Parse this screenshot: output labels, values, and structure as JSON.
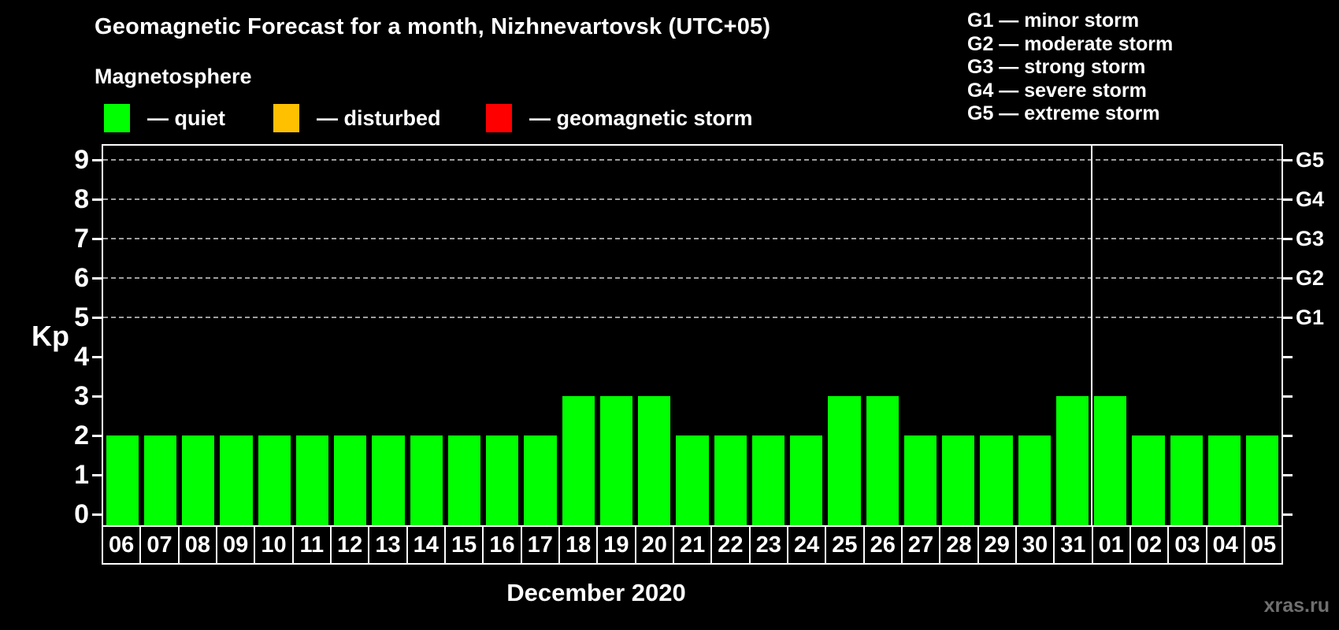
{
  "title": "Geomagnetic Forecast for a month, Nizhnevartovsk (UTC+05)",
  "subtitle": "Magnetosphere",
  "legend": {
    "items": [
      {
        "name": "quiet",
        "label": "— quiet",
        "color": "#00ff00"
      },
      {
        "name": "disturbed",
        "label": "— disturbed",
        "color": "#ffc000"
      },
      {
        "name": "geomagnetic-storm",
        "label": "— geomagnetic storm",
        "color": "#ff0000"
      }
    ]
  },
  "g_scale_legend": [
    "G1 — minor storm",
    "G2 — moderate storm",
    "G3 — strong storm",
    "G4 — severe storm",
    "G5 — extreme storm"
  ],
  "ylabel": "Kp",
  "xlabel": "December 2020",
  "watermark": "xras.ru",
  "chart_data": {
    "type": "bar",
    "title": "Geomagnetic Forecast for a month, Nizhnevartovsk (UTC+05)",
    "xlabel": "December 2020",
    "ylabel": "Kp",
    "categories": [
      "06",
      "07",
      "08",
      "09",
      "10",
      "11",
      "12",
      "13",
      "14",
      "15",
      "16",
      "17",
      "18",
      "19",
      "20",
      "21",
      "22",
      "23",
      "24",
      "25",
      "26",
      "27",
      "28",
      "29",
      "30",
      "31",
      "01",
      "02",
      "03",
      "04",
      "05"
    ],
    "values": [
      2,
      2,
      2,
      2,
      2,
      2,
      2,
      2,
      2,
      2,
      2,
      2,
      3,
      3,
      3,
      2,
      2,
      2,
      2,
      3,
      3,
      2,
      2,
      2,
      2,
      3,
      3,
      2,
      2,
      2,
      2
    ],
    "ylim": [
      0,
      9
    ],
    "yticks": [
      0,
      1,
      2,
      3,
      4,
      5,
      6,
      7,
      8,
      9
    ],
    "gridlines_at": [
      5,
      6,
      7,
      8,
      9
    ],
    "grid": "dashed-horizontal-at-G-levels-only",
    "right_axis_labels": [
      {
        "value": 5,
        "label": "G1"
      },
      {
        "value": 6,
        "label": "G2"
      },
      {
        "value": 7,
        "label": "G3"
      },
      {
        "value": 8,
        "label": "G4"
      },
      {
        "value": 9,
        "label": "G5"
      }
    ],
    "month_divider_after_index": 25,
    "color_rules": {
      "quiet_max_kp": 3,
      "disturbed_max_kp": 4
    },
    "colors": {
      "quiet": "#00ff00",
      "disturbed": "#ffc000",
      "storm": "#ff0000"
    },
    "legend_position": "top-left",
    "background": "#000000"
  }
}
